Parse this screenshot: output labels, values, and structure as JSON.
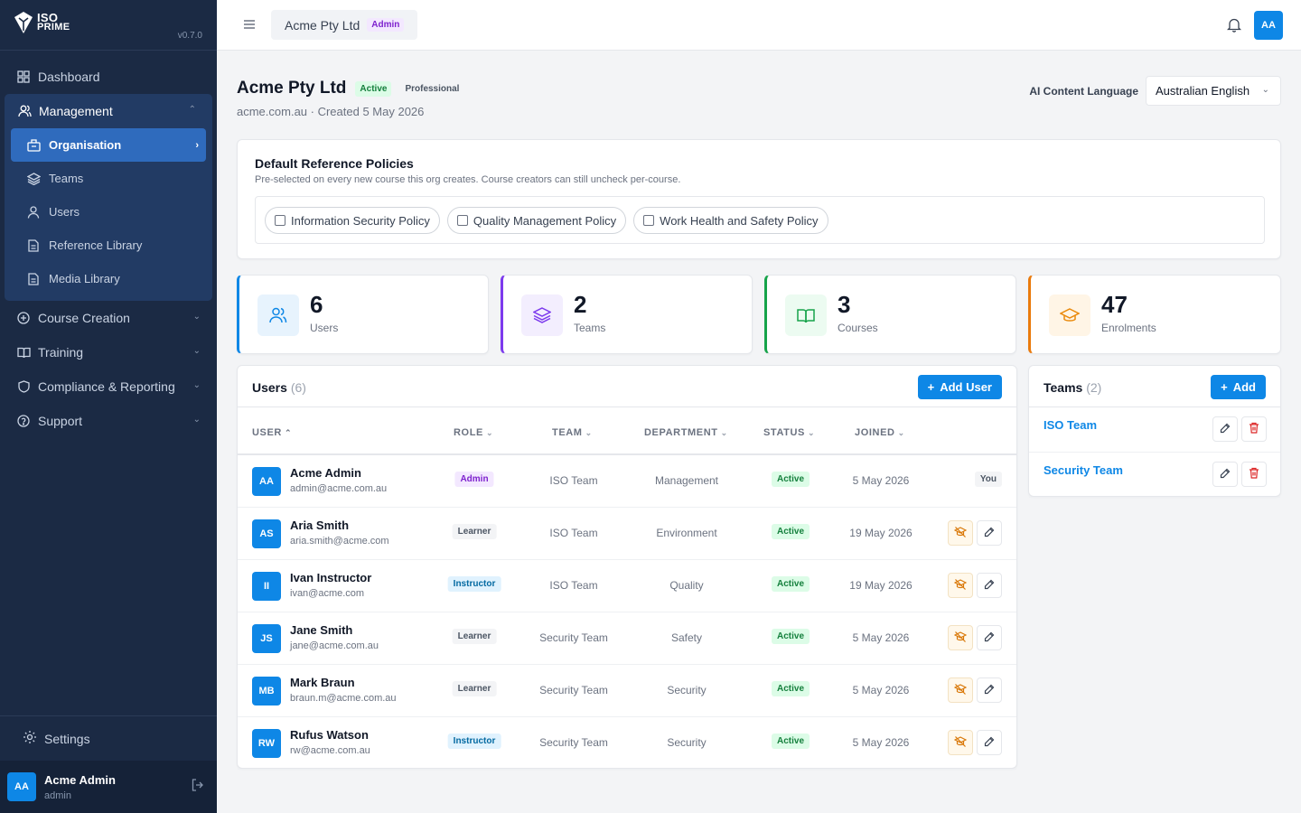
{
  "app": {
    "logo_line1": "ISO",
    "logo_line2": "PRIME",
    "version": "v0.7.0"
  },
  "sidebar": {
    "dashboard": "Dashboard",
    "management": "Management",
    "management_items": [
      {
        "label": "Organisation",
        "icon": "building-icon"
      },
      {
        "label": "Teams",
        "icon": "layers-icon"
      },
      {
        "label": "Users",
        "icon": "user-icon"
      },
      {
        "label": "Reference Library",
        "icon": "document-icon"
      },
      {
        "label": "Media Library",
        "icon": "document-icon"
      }
    ],
    "sections": [
      "Course Creation",
      "Training",
      "Compliance & Reporting",
      "Support"
    ],
    "settings": "Settings",
    "user": {
      "initials": "AA",
      "name": "Acme Admin",
      "role": "admin"
    }
  },
  "topbar": {
    "org_name": "Acme Pty Ltd",
    "role_badge": "Admin",
    "avatar": "AA"
  },
  "org": {
    "name": "Acme Pty Ltd",
    "status": "Active",
    "plan": "Professional",
    "subtitle": "acme.com.au · Created 5 May 2026",
    "language_label": "AI Content Language",
    "language_value": "Australian English"
  },
  "policies": {
    "title": "Default Reference Policies",
    "description": "Pre-selected on every new course this org creates. Course creators can still uncheck per-course.",
    "items": [
      "Information Security Policy",
      "Quality Management Policy",
      "Work Health and Safety Policy"
    ]
  },
  "stats": [
    {
      "value": "6",
      "label": "Users",
      "color": "#0e87e6"
    },
    {
      "value": "2",
      "label": "Teams",
      "color": "#7c3aed"
    },
    {
      "value": "3",
      "label": "Courses",
      "color": "#16a34a"
    },
    {
      "value": "47",
      "label": "Enrolments",
      "color": "#ea7a0c"
    }
  ],
  "users": {
    "title": "Users",
    "count": "(6)",
    "add_button": "Add User",
    "columns": [
      "USER",
      "ROLE",
      "TEAM",
      "DEPARTMENT",
      "STATUS",
      "JOINED"
    ],
    "rows": [
      {
        "initials": "AA",
        "name": "Acme Admin",
        "email": "admin@acme.com.au",
        "role": "Admin",
        "team": "ISO Team",
        "department": "Management",
        "status": "Active",
        "joined": "5 May 2026",
        "tag": "You"
      },
      {
        "initials": "AS",
        "name": "Aria Smith",
        "email": "aria.smith@acme.com",
        "role": "Learner",
        "team": "ISO Team",
        "department": "Environment",
        "status": "Active",
        "joined": "19 May 2026"
      },
      {
        "initials": "II",
        "name": "Ivan Instructor",
        "email": "ivan@acme.com",
        "role": "Instructor",
        "team": "ISO Team",
        "department": "Quality",
        "status": "Active",
        "joined": "19 May 2026"
      },
      {
        "initials": "JS",
        "name": "Jane Smith",
        "email": "jane@acme.com.au",
        "role": "Learner",
        "team": "Security Team",
        "department": "Safety",
        "status": "Active",
        "joined": "5 May 2026"
      },
      {
        "initials": "MB",
        "name": "Mark Braun",
        "email": "braun.m@acme.com.au",
        "role": "Learner",
        "team": "Security Team",
        "department": "Security",
        "status": "Active",
        "joined": "5 May 2026"
      },
      {
        "initials": "RW",
        "name": "Rufus Watson",
        "email": "rw@acme.com.au",
        "role": "Instructor",
        "team": "Security Team",
        "department": "Security",
        "status": "Active",
        "joined": "5 May 2026"
      }
    ]
  },
  "teams": {
    "title": "Teams",
    "count": "(2)",
    "add_button": "Add",
    "items": [
      "ISO Team",
      "Security Team"
    ]
  }
}
